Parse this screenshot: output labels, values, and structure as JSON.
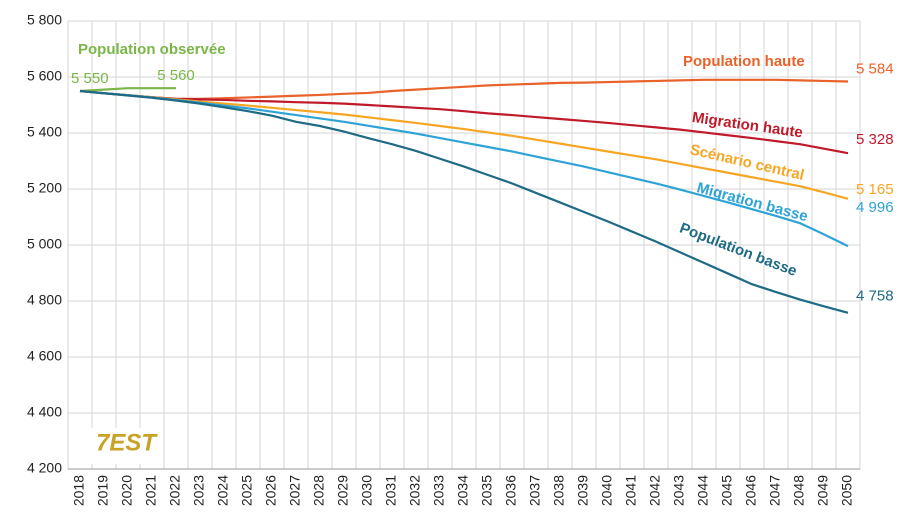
{
  "chart_data": {
    "type": "line",
    "logo": "7EST",
    "categories": [
      "2018",
      "2019",
      "2020",
      "2021",
      "2022",
      "2023",
      "2024",
      "2025",
      "2026",
      "2027",
      "2028",
      "2029",
      "2030",
      "2031",
      "2032",
      "2033",
      "2034",
      "2035",
      "2036",
      "2037",
      "2038",
      "2039",
      "2040",
      "2041",
      "2042",
      "2043",
      "2044",
      "2045",
      "2046",
      "2047",
      "2048",
      "2049",
      "2050"
    ],
    "ylim": [
      4200,
      5800
    ],
    "yticks": [
      {
        "value": 4200,
        "label": "4 200"
      },
      {
        "value": 4400,
        "label": "4 400"
      },
      {
        "value": 4600,
        "label": "4 600"
      },
      {
        "value": 4800,
        "label": "4 800"
      },
      {
        "value": 5000,
        "label": "5 000"
      },
      {
        "value": 5200,
        "label": "5 200"
      },
      {
        "value": 5400,
        "label": "5 400"
      },
      {
        "value": 5600,
        "label": "5 600"
      },
      {
        "value": 5800,
        "label": "5 800"
      }
    ],
    "grid": true,
    "series": [
      {
        "name": "Population observée",
        "color": "#7ab648",
        "values": [
          5550,
          5555,
          5560,
          5560,
          5560,
          null,
          null,
          null,
          null,
          null,
          null,
          null,
          null,
          null,
          null,
          null,
          null,
          null,
          null,
          null,
          null,
          null,
          null,
          null,
          null,
          null,
          null,
          null,
          null,
          null,
          null,
          null,
          null
        ],
        "value_labels": [
          "5 550",
          null,
          null,
          null,
          "5 560",
          null,
          null,
          null,
          null,
          null,
          null,
          null,
          null,
          null,
          null,
          null,
          null,
          null,
          null,
          null,
          null,
          null,
          null,
          null,
          null,
          null,
          null,
          null,
          null,
          null,
          null,
          null,
          null
        ]
      },
      {
        "name": "Population haute",
        "color": "#e8622a",
        "values": [
          5550,
          5542,
          5535,
          5528,
          5522,
          5522,
          5524,
          5527,
          5530,
          5533,
          5536,
          5540,
          5543,
          5550,
          5555,
          5560,
          5565,
          5570,
          5573,
          5576,
          5579,
          5580,
          5582,
          5584,
          5586,
          5588,
          5590,
          5590,
          5590,
          5590,
          5588,
          5586,
          5584
        ],
        "value_labels": [
          null,
          null,
          null,
          null,
          null,
          null,
          null,
          null,
          null,
          null,
          null,
          null,
          null,
          null,
          null,
          null,
          null,
          null,
          null,
          null,
          null,
          null,
          null,
          null,
          null,
          null,
          null,
          null,
          null,
          null,
          null,
          null,
          "5 584"
        ]
      },
      {
        "name": "Migration haute",
        "color": "#c0192a",
        "values": [
          5550,
          5542,
          5535,
          5528,
          5522,
          5520,
          5518,
          5515,
          5513,
          5510,
          5508,
          5505,
          5500,
          5495,
          5490,
          5485,
          5478,
          5470,
          5464,
          5457,
          5450,
          5443,
          5436,
          5428,
          5420,
          5412,
          5402,
          5392,
          5382,
          5371,
          5360,
          5344,
          5328
        ],
        "value_labels": [
          null,
          null,
          null,
          null,
          null,
          null,
          null,
          null,
          null,
          null,
          null,
          null,
          null,
          null,
          null,
          null,
          null,
          null,
          null,
          null,
          null,
          null,
          null,
          null,
          null,
          null,
          null,
          null,
          null,
          null,
          null,
          null,
          "5 328"
        ]
      },
      {
        "name": "Scénario central",
        "color": "#f5a623",
        "values": [
          5550,
          5542,
          5535,
          5528,
          5520,
          5512,
          5505,
          5498,
          5490,
          5482,
          5474,
          5466,
          5456,
          5446,
          5436,
          5425,
          5414,
          5402,
          5390,
          5376,
          5362,
          5348,
          5334,
          5320,
          5306,
          5290,
          5274,
          5258,
          5242,
          5226,
          5210,
          5188,
          5165
        ],
        "value_labels": [
          null,
          null,
          null,
          null,
          null,
          null,
          null,
          null,
          null,
          null,
          null,
          null,
          null,
          null,
          null,
          null,
          null,
          null,
          null,
          null,
          null,
          null,
          null,
          null,
          null,
          null,
          null,
          null,
          null,
          null,
          null,
          null,
          "5 165"
        ]
      },
      {
        "name": "Migration basse",
        "color": "#2ea3d5",
        "values": [
          5550,
          5542,
          5535,
          5527,
          5518,
          5508,
          5498,
          5488,
          5476,
          5464,
          5452,
          5440,
          5426,
          5412,
          5398,
          5382,
          5366,
          5350,
          5334,
          5316,
          5298,
          5280,
          5260,
          5240,
          5220,
          5198,
          5175,
          5152,
          5128,
          5104,
          5078,
          5038,
          4996
        ],
        "value_labels": [
          null,
          null,
          null,
          null,
          null,
          null,
          null,
          null,
          null,
          null,
          null,
          null,
          null,
          null,
          null,
          null,
          null,
          null,
          null,
          null,
          null,
          null,
          null,
          null,
          null,
          null,
          null,
          null,
          null,
          null,
          null,
          null,
          "4 996"
        ]
      },
      {
        "name": "Population basse",
        "color": "#1f6a85",
        "values": [
          5550,
          5542,
          5534,
          5526,
          5516,
          5505,
          5492,
          5478,
          5462,
          5440,
          5425,
          5405,
          5382,
          5360,
          5336,
          5308,
          5280,
          5250,
          5220,
          5186,
          5152,
          5118,
          5084,
          5048,
          5012,
          4974,
          4936,
          4898,
          4860,
          4832,
          4805,
          4781,
          4758
        ],
        "value_labels": [
          null,
          null,
          null,
          null,
          null,
          null,
          null,
          null,
          null,
          null,
          null,
          null,
          null,
          null,
          null,
          null,
          null,
          null,
          null,
          null,
          null,
          null,
          null,
          null,
          null,
          null,
          null,
          null,
          null,
          null,
          null,
          null,
          "4 758"
        ]
      }
    ]
  }
}
